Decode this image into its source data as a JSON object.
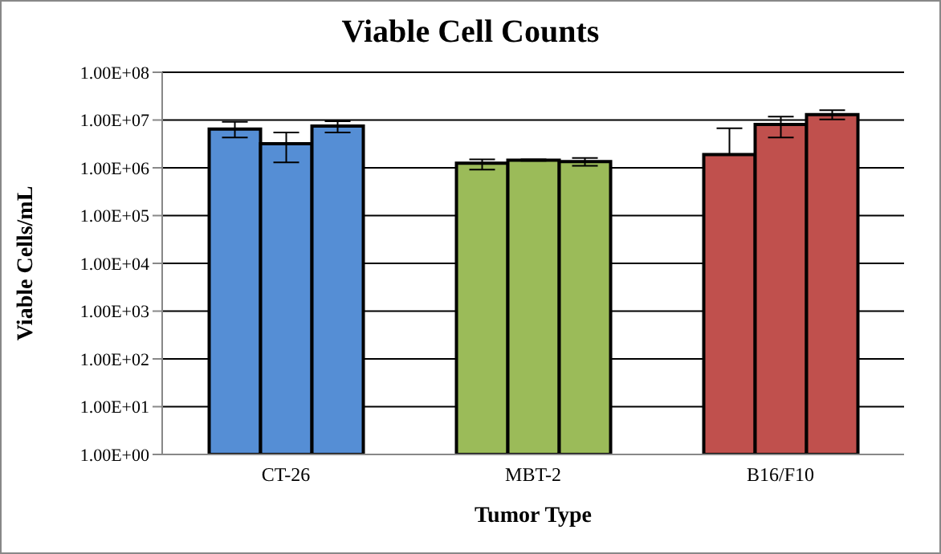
{
  "chart_data": {
    "type": "bar",
    "title": "Viable Cell Counts",
    "xlabel": "Tumor Type",
    "ylabel": "Viable Cells/mL",
    "categories": [
      "CT-26",
      "MBT-2",
      "B16/F10"
    ],
    "series": [
      {
        "colors": [
          "#558ed5",
          "#9bbb59",
          "#c0504d"
        ],
        "values": [
          6500000,
          1250000,
          1900000
        ],
        "errors": [
          [
            4300000,
            9200000
          ],
          [
            920000,
            1500000
          ],
          [
            1900000,
            6700000
          ]
        ]
      },
      {
        "colors": [
          "#558ed5",
          "#9bbb59",
          "#c0504d"
        ],
        "values": [
          3200000,
          1450000,
          8100000
        ],
        "errors": [
          [
            1300000,
            5500000
          ],
          [
            1400000,
            1500000
          ],
          [
            4300000,
            11800000
          ]
        ]
      },
      {
        "colors": [
          "#558ed5",
          "#9bbb59",
          "#c0504d"
        ],
        "values": [
          7500000,
          1350000,
          13000000
        ],
        "errors": [
          [
            5500000,
            9400000
          ],
          [
            1100000,
            1600000
          ],
          [
            10300000,
            16000000
          ]
        ]
      }
    ],
    "log": true,
    "ylim": [
      1,
      100000000
    ],
    "yticks": [
      {
        "value": 1,
        "label": "1.00E+00"
      },
      {
        "value": 10,
        "label": "1.00E+01"
      },
      {
        "value": 100,
        "label": "1.00E+02"
      },
      {
        "value": 1000,
        "label": "1.00E+03"
      },
      {
        "value": 10000,
        "label": "1.00E+04"
      },
      {
        "value": 100000,
        "label": "1.00E+05"
      },
      {
        "value": 1000000,
        "label": "1.00E+06"
      },
      {
        "value": 10000000,
        "label": "1.00E+07"
      },
      {
        "value": 100000000,
        "label": "1.00E+08"
      }
    ],
    "grid": "y",
    "legend": false
  }
}
